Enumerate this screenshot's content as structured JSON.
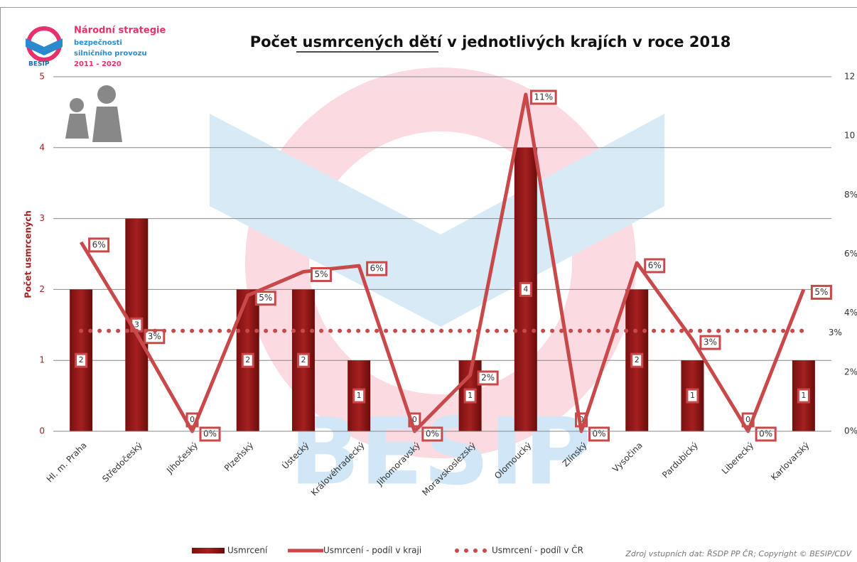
{
  "chart_data": {
    "type": "bar",
    "title": "Počet usmrcených dětí v jednotlivých krajích v roce 2018",
    "logo": {
      "lines": [
        "Národní strategie",
        "bezpečnosti",
        "silničního provozu",
        "2011 - 2020"
      ],
      "brand": "BESIP"
    },
    "watermark": "BESIP",
    "y_label": "Počet usmrcených",
    "source": "Zdroj vstupních dat: ŘSDP PP ČR; Copyright © BESIP/CDV",
    "categories": [
      "Hl. m. Praha",
      "Středočeský",
      "Jihočeský",
      "Plzeňský",
      "Ústecký",
      "Královéhradecký",
      "Jihomoravský",
      "Moravskoslezský",
      "Olomoucký",
      "Zlínský",
      "Vysočina",
      "Pardubický",
      "Liberecký",
      "Karlovarský"
    ],
    "series": [
      {
        "name": "Usmrcení",
        "color": "#a52020",
        "values": [
          2,
          3,
          0,
          2,
          2,
          1,
          0,
          1,
          4,
          0,
          2,
          1,
          0,
          1
        ]
      },
      {
        "name": "Usmrcení - podíl v kraji",
        "type": "line",
        "axis": "y2",
        "color": "#c9494a",
        "values": [
          6.4,
          3.3,
          0,
          4.6,
          5.4,
          5.6,
          0,
          1.9,
          11.4,
          0,
          5.7,
          3.1,
          0,
          4.8
        ],
        "value_labels": [
          "6%",
          "3%",
          "0%",
          "5%",
          "5%",
          "6%",
          "0%",
          "2%",
          "11%",
          "0%",
          "6%",
          "3%",
          "0%",
          "5%"
        ]
      },
      {
        "name": "Usmrcení - podíl v ČR",
        "type": "dotted",
        "axis": "y2",
        "color": "#c9494a",
        "values": [
          3.4,
          3.4,
          3.4,
          3.4,
          3.4,
          3.4,
          3.4,
          3.4,
          3.4,
          3.4,
          3.4,
          3.4,
          3.4,
          3.4
        ],
        "value_labels": [
          null,
          null,
          null,
          null,
          null,
          null,
          null,
          null,
          null,
          null,
          null,
          null,
          null,
          "3%"
        ]
      }
    ],
    "ylim": [
      0,
      5
    ],
    "yticks": [
      0,
      1,
      2,
      3,
      4,
      5
    ],
    "y2lim": [
      0,
      12
    ],
    "y2ticks": [
      {
        "value": 0,
        "label": "0%"
      },
      {
        "value": 2,
        "label": "2%"
      },
      {
        "value": 4,
        "label": "4%"
      },
      {
        "value": 6,
        "label": "6%"
      },
      {
        "value": 8,
        "label": "8%"
      },
      {
        "value": 10,
        "label": "10"
      },
      {
        "value": 12,
        "label": "12"
      }
    ],
    "grid": true
  }
}
